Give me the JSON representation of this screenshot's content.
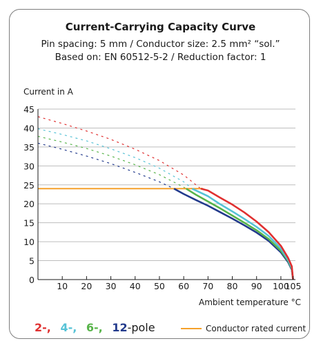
{
  "chart_data": {
    "type": "line",
    "title": "Current-Carrying Capacity Curve",
    "subtitle_lines": [
      "Pin spacing: 5 mm / Conductor size: 2.5 mm² “sol.”",
      "Based on: EN 60512-5-2 / Reduction factor: 1"
    ],
    "ylabel": "Current in A",
    "xlabel": "Ambient temperature °C",
    "xlim": [
      0,
      106
    ],
    "ylim": [
      0,
      45
    ],
    "xticks": [
      10,
      20,
      30,
      40,
      50,
      60,
      70,
      80,
      90,
      100,
      105
    ],
    "yticks": [
      0,
      5,
      10,
      15,
      20,
      25,
      30,
      35,
      40,
      45
    ],
    "series": [
      {
        "name": "2-",
        "color": "#e03030",
        "dashed_x": [
          0,
          10,
          20,
          30,
          40,
          50,
          60,
          67
        ],
        "dashed_y": [
          43,
          41.2,
          39.2,
          37.0,
          34.4,
          31.4,
          27.6,
          24.0
        ],
        "x": [
          67,
          70,
          75,
          80,
          85,
          90,
          95,
          100,
          103,
          104.5,
          105
        ],
        "y": [
          24.0,
          23.5,
          21.6,
          19.8,
          17.7,
          15.3,
          12.5,
          8.9,
          5.7,
          3.5,
          0
        ]
      },
      {
        "name": "4-",
        "color": "#56c2d6",
        "dashed_x": [
          0,
          10,
          20,
          30,
          40,
          50,
          60,
          63.5
        ],
        "dashed_y": [
          39.8,
          38.3,
          36.6,
          34.5,
          32.2,
          29.4,
          25.8,
          24.0
        ],
        "x": [
          63.5,
          70,
          75,
          80,
          85,
          90,
          95,
          100,
          103,
          104.5,
          105
        ],
        "y": [
          24.0,
          22.0,
          19.9,
          18.0,
          16.0,
          13.9,
          11.5,
          8.2,
          5.2,
          3.0,
          0
        ]
      },
      {
        "name": "6-",
        "color": "#58b44a",
        "dashed_x": [
          0,
          10,
          20,
          30,
          40,
          50,
          60,
          61
        ],
        "dashed_y": [
          37.8,
          36.3,
          34.6,
          32.6,
          30.3,
          27.7,
          24.4,
          24.0
        ],
        "x": [
          61,
          65,
          70,
          75,
          80,
          85,
          90,
          95,
          100,
          103,
          104.5,
          105
        ],
        "y": [
          24.0,
          22.4,
          20.6,
          18.8,
          16.9,
          15.0,
          13.0,
          10.7,
          7.6,
          4.9,
          2.8,
          0
        ]
      },
      {
        "name": "12-",
        "color": "#223a8c",
        "dashed_x": [
          0,
          10,
          20,
          30,
          40,
          50,
          56
        ],
        "dashed_y": [
          36.0,
          34.4,
          32.6,
          30.6,
          28.3,
          25.8,
          24.0
        ],
        "x": [
          56,
          60,
          65,
          70,
          75,
          80,
          85,
          90,
          95,
          100,
          103,
          104.5,
          105
        ],
        "y": [
          24.0,
          22.6,
          21.0,
          19.5,
          17.8,
          16.1,
          14.3,
          12.4,
          10.2,
          7.2,
          4.6,
          2.6,
          0
        ]
      },
      {
        "name": "Conductor rated current",
        "color": "#f5a02a",
        "x": [
          0,
          68
        ],
        "y": [
          24,
          24
        ]
      }
    ],
    "legend": {
      "pole_labels": [
        {
          "text": "2-,",
          "color": "#e03030"
        },
        {
          "text": "4-,",
          "color": "#56c2d6"
        },
        {
          "text": "6-,",
          "color": "#58b44a"
        },
        {
          "text": "12",
          "color": "#223a8c"
        }
      ],
      "pole_suffix": "-pole",
      "rated_label": "Conductor rated current",
      "rated_color": "#f5a02a"
    }
  }
}
